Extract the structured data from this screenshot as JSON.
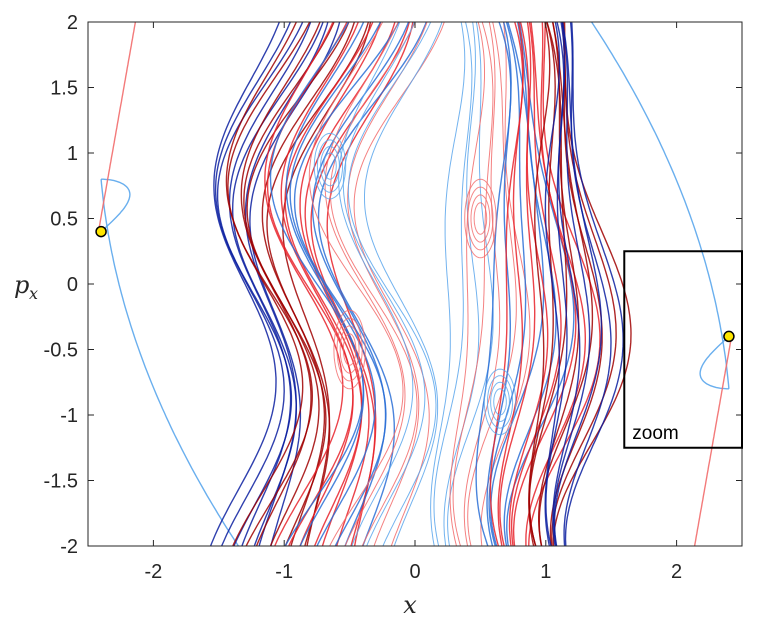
{
  "chart_data": {
    "type": "line",
    "title": "",
    "xlabel": "x",
    "ylabel": "p",
    "ylabel_sub": "x",
    "xlim": [
      -2.5,
      2.5
    ],
    "ylim": [
      -2,
      2
    ],
    "xticks": [
      -2,
      -1,
      0,
      1,
      2
    ],
    "xtick_labels": [
      "-2",
      "-1",
      "0",
      "1",
      "2"
    ],
    "yticks": [
      2,
      1.5,
      1,
      0.5,
      0,
      -0.5,
      -1,
      -1.5,
      -2
    ],
    "ytick_labels": [
      "2",
      "1.5",
      "1",
      "0.5",
      "0",
      "-0.5",
      "-1",
      "-1.5",
      "-2"
    ],
    "grid": false,
    "colors": {
      "dark_red": "#a00000",
      "red": "#e8222a",
      "light_red": "#f26b6b",
      "dark_blue": "#0a1fa0",
      "blue": "#2a6fd6",
      "light_blue": "#5aa6ec",
      "marker_fill": "#ffe600"
    },
    "points": [
      {
        "x": -2.4,
        "y": 0.4
      },
      {
        "x": 2.4,
        "y": -0.4
      }
    ],
    "annotation": {
      "label": "zoom",
      "box_x": [
        1.6,
        2.5
      ],
      "box_y": [
        -1.25,
        0.25
      ]
    }
  }
}
